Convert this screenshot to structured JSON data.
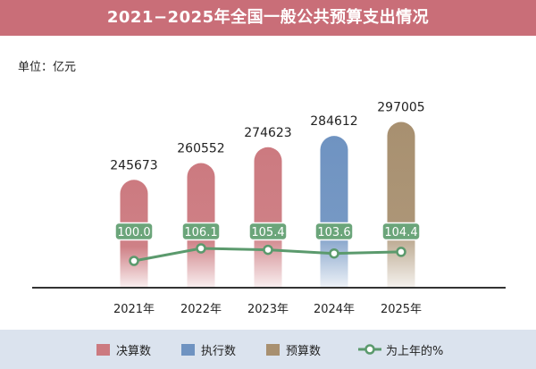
{
  "header": {
    "title": "2021−2025年全国一般公共预算支出情况"
  },
  "unit_label": "单位：亿元",
  "colors": {
    "header_bg": "#c96e78",
    "final": "#cc7a80",
    "executed": "#6f93c1",
    "budget": "#a89070",
    "line": "#5b9a6d",
    "label_bg": "#6ba57a",
    "footer_bg": "#dbe3ee"
  },
  "legend": [
    {
      "label": "决算数",
      "color": "#cc7a80",
      "kind": "bar"
    },
    {
      "label": "执行数",
      "color": "#6f93c1",
      "kind": "bar"
    },
    {
      "label": "预算数",
      "color": "#a89070",
      "kind": "bar"
    },
    {
      "label": "为上年的%",
      "color": "#5b9a6d",
      "kind": "line"
    }
  ],
  "chart_data": {
    "type": "bar",
    "title": "2021−2025年全国一般公共预算支出情况",
    "categories": [
      "2021年",
      "2022年",
      "2023年",
      "2024年",
      "2025年"
    ],
    "values": [
      245673,
      260552,
      274623,
      284612,
      297005
    ],
    "value_labels": [
      "245673",
      "260552",
      "274623",
      "284612",
      "297005"
    ],
    "bar_kinds": [
      "决算数",
      "决算数",
      "决算数",
      "执行数",
      "预算数"
    ],
    "series": [
      {
        "name": "为上年的%",
        "type": "line",
        "values": [
          100.0,
          106.1,
          105.4,
          103.6,
          104.4
        ],
        "labels": [
          "100.0",
          "106.1",
          "105.4",
          "103.6",
          "104.4"
        ]
      }
    ],
    "ylabel": "单位：亿元",
    "grid": false,
    "legend_position": "bottom"
  }
}
